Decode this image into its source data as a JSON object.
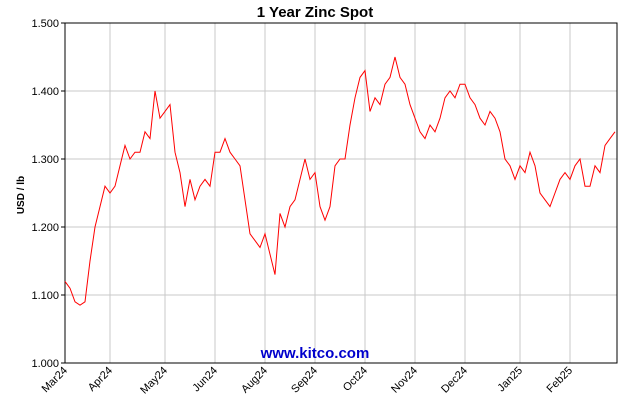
{
  "chart_data": {
    "type": "line",
    "title": "1 Year Zinc Spot",
    "y_label": "USD / lb",
    "watermark": "www.kitco.com",
    "categories": [
      "Mar24",
      null,
      null,
      null,
      null,
      null,
      null,
      null,
      null,
      "Apr24",
      null,
      null,
      null,
      null,
      null,
      null,
      null,
      null,
      null,
      null,
      "May24",
      null,
      null,
      null,
      null,
      null,
      null,
      null,
      null,
      null,
      "Jun24",
      null,
      null,
      null,
      null,
      null,
      null,
      null,
      null,
      null,
      "Aug24",
      null,
      null,
      null,
      null,
      null,
      null,
      null,
      null,
      null,
      "Sep24",
      null,
      null,
      null,
      null,
      null,
      null,
      null,
      null,
      null,
      "Oct24",
      null,
      null,
      null,
      null,
      null,
      null,
      null,
      null,
      null,
      "Nov24",
      null,
      null,
      null,
      null,
      null,
      null,
      null,
      null,
      null,
      "Dec24",
      null,
      null,
      null,
      null,
      null,
      null,
      null,
      null,
      null,
      null,
      "Jan25",
      null,
      null,
      null,
      null,
      null,
      null,
      null,
      null,
      null,
      "Feb25",
      null,
      null,
      null,
      null,
      null,
      null,
      null,
      null,
      null
    ],
    "series": [
      {
        "name": "Zinc",
        "color": "#ff0000",
        "values": [
          1.12,
          1.11,
          1.09,
          1.085,
          1.09,
          1.15,
          1.2,
          1.23,
          1.26,
          1.25,
          1.26,
          1.29,
          1.32,
          1.3,
          1.31,
          1.31,
          1.34,
          1.33,
          1.4,
          1.36,
          1.37,
          1.38,
          1.31,
          1.28,
          1.23,
          1.27,
          1.24,
          1.26,
          1.27,
          1.26,
          1.31,
          1.31,
          1.33,
          1.31,
          1.3,
          1.29,
          1.24,
          1.19,
          1.18,
          1.17,
          1.19,
          1.16,
          1.13,
          1.22,
          1.2,
          1.23,
          1.24,
          1.27,
          1.3,
          1.27,
          1.28,
          1.23,
          1.21,
          1.23,
          1.29,
          1.3,
          1.3,
          1.35,
          1.39,
          1.42,
          1.43,
          1.37,
          1.39,
          1.38,
          1.41,
          1.42,
          1.45,
          1.42,
          1.41,
          1.38,
          1.36,
          1.34,
          1.33,
          1.35,
          1.34,
          1.36,
          1.39,
          1.4,
          1.39,
          1.41,
          1.41,
          1.39,
          1.38,
          1.36,
          1.35,
          1.37,
          1.36,
          1.34,
          1.3,
          1.29,
          1.27,
          1.29,
          1.28,
          1.31,
          1.29,
          1.25,
          1.24,
          1.23,
          1.25,
          1.27,
          1.28,
          1.27,
          1.29,
          1.3,
          1.26,
          1.26,
          1.29,
          1.28,
          1.32,
          1.33,
          1.34
        ]
      }
    ],
    "ylim": [
      1.0,
      1.5
    ],
    "yticks": [
      {
        "value": 1.0,
        "label": "1.000"
      },
      {
        "value": 1.1,
        "label": "1.100"
      },
      {
        "value": 1.2,
        "label": "1.200"
      },
      {
        "value": 1.3,
        "label": "1.300"
      },
      {
        "value": 1.4,
        "label": "1.400"
      },
      {
        "value": 1.5,
        "label": "1.500"
      }
    ],
    "grid": true
  }
}
